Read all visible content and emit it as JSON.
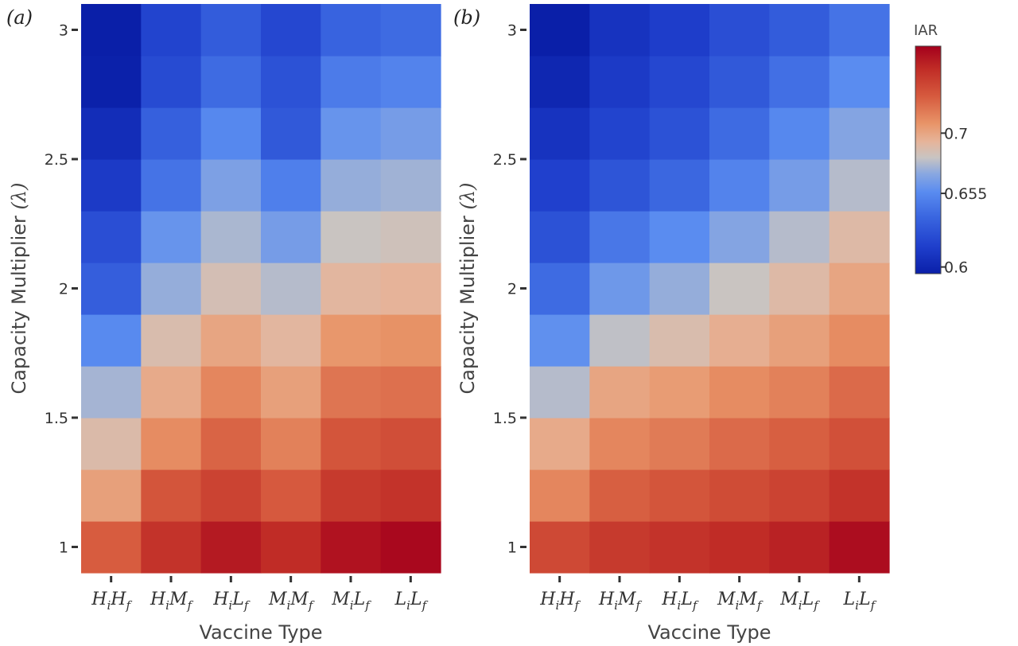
{
  "chart_data": [
    {
      "type": "heatmap",
      "panel_label": "(a)",
      "xlabel": "Vaccine Type",
      "ylabel_text": "Capacity Multiplier ",
      "ylabel_symbol": "(λ)",
      "x_categories": [
        {
          "a": "H",
          "sa": "i",
          "b": "H",
          "sb": "f"
        },
        {
          "a": "H",
          "sa": "i",
          "b": "M",
          "sb": "f"
        },
        {
          "a": "H",
          "sa": "i",
          "b": "L",
          "sb": "f"
        },
        {
          "a": "M",
          "sa": "i",
          "b": "M",
          "sb": "f"
        },
        {
          "a": "M",
          "sa": "i",
          "b": "L",
          "sb": "f"
        },
        {
          "a": "L",
          "sa": "i",
          "b": "L",
          "sb": "f"
        }
      ],
      "y_values": [
        1.0,
        1.2,
        1.4,
        1.6,
        1.8,
        2.0,
        2.2,
        2.4,
        2.6,
        2.8,
        3.0
      ],
      "y_ticks": [
        1,
        1.5,
        2,
        2.5,
        3
      ],
      "y_tick_labels": [
        "1",
        "1.5",
        "2",
        "2.5",
        "3"
      ],
      "z": [
        [
          0.727,
          0.745,
          0.755,
          0.748,
          0.758,
          0.762
        ],
        [
          0.702,
          0.73,
          0.738,
          0.728,
          0.742,
          0.745
        ],
        [
          0.689,
          0.71,
          0.724,
          0.714,
          0.73,
          0.733
        ],
        [
          0.675,
          0.698,
          0.712,
          0.702,
          0.718,
          0.72
        ],
        [
          0.655,
          0.688,
          0.7,
          0.692,
          0.706,
          0.708
        ],
        [
          0.633,
          0.672,
          0.686,
          0.678,
          0.692,
          0.694
        ],
        [
          0.624,
          0.66,
          0.676,
          0.664,
          0.682,
          0.684
        ],
        [
          0.612,
          0.644,
          0.666,
          0.65,
          0.672,
          0.674
        ],
        [
          0.604,
          0.634,
          0.654,
          0.63,
          0.66,
          0.664
        ],
        [
          0.596,
          0.622,
          0.64,
          0.626,
          0.648,
          0.652
        ],
        [
          0.59,
          0.618,
          0.632,
          0.62,
          0.636,
          0.64
        ]
      ]
    },
    {
      "type": "heatmap",
      "panel_label": "(b)",
      "xlabel": "Vaccine Type",
      "ylabel_text": "Capacity Multiplier ",
      "ylabel_symbol": "(λ)",
      "x_categories": [
        {
          "a": "H",
          "sa": "i",
          "b": "H",
          "sb": "f"
        },
        {
          "a": "H",
          "sa": "i",
          "b": "M",
          "sb": "f"
        },
        {
          "a": "H",
          "sa": "i",
          "b": "L",
          "sb": "f"
        },
        {
          "a": "M",
          "sa": "i",
          "b": "M",
          "sb": "f"
        },
        {
          "a": "M",
          "sa": "i",
          "b": "L",
          "sb": "f"
        },
        {
          "a": "L",
          "sa": "i",
          "b": "L",
          "sb": "f"
        }
      ],
      "y_values": [
        1.0,
        1.2,
        1.4,
        1.6,
        1.8,
        2.0,
        2.2,
        2.4,
        2.6,
        2.8,
        3.0
      ],
      "y_ticks": [
        1,
        1.5,
        2,
        2.5,
        3
      ],
      "y_tick_labels": [
        "1",
        "1.5",
        "2",
        "2.5",
        "3"
      ],
      "z": [
        [
          0.735,
          0.742,
          0.745,
          0.748,
          0.752,
          0.76
        ],
        [
          0.712,
          0.726,
          0.73,
          0.734,
          0.738,
          0.745
        ],
        [
          0.698,
          0.712,
          0.716,
          0.722,
          0.726,
          0.732
        ],
        [
          0.678,
          0.7,
          0.704,
          0.71,
          0.714,
          0.722
        ],
        [
          0.658,
          0.68,
          0.688,
          0.696,
          0.702,
          0.71
        ],
        [
          0.64,
          0.662,
          0.672,
          0.682,
          0.69,
          0.7
        ],
        [
          0.626,
          0.646,
          0.656,
          0.668,
          0.678,
          0.69
        ],
        [
          0.616,
          0.628,
          0.638,
          0.652,
          0.664,
          0.678
        ],
        [
          0.608,
          0.618,
          0.626,
          0.64,
          0.654,
          0.668
        ],
        [
          0.6,
          0.612,
          0.62,
          0.63,
          0.642,
          0.656
        ],
        [
          0.594,
          0.608,
          0.614,
          0.624,
          0.632,
          0.644
        ]
      ]
    }
  ],
  "colorbar": {
    "title": "IAR",
    "zmin": 0.595,
    "zmax": 0.765,
    "tick_values": [
      0.6,
      0.655,
      0.7
    ],
    "tick_labels": [
      "0.6",
      "0.655",
      "0.7"
    ],
    "colorscale": [
      [
        0.0,
        "#0a1fa8"
      ],
      [
        0.12,
        "#1f3fcc"
      ],
      [
        0.25,
        "#3a66e0"
      ],
      [
        0.36,
        "#5a8cf0"
      ],
      [
        0.44,
        "#8aa8e0"
      ],
      [
        0.51,
        "#c8c4c2"
      ],
      [
        0.58,
        "#e6b49a"
      ],
      [
        0.66,
        "#e89468"
      ],
      [
        0.78,
        "#d65a3e"
      ],
      [
        0.9,
        "#c02c26"
      ],
      [
        1.0,
        "#a4001c"
      ]
    ]
  }
}
